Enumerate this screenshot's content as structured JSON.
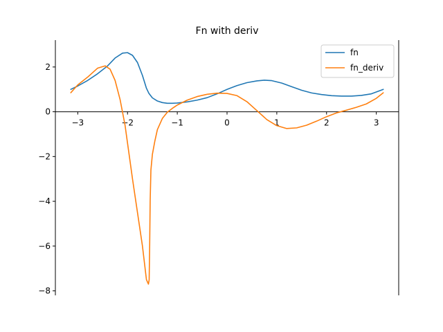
{
  "chart_data": {
    "type": "line",
    "title": "Fn with deriv",
    "xlabel": "",
    "ylabel": "",
    "xlim": [
      -3.45,
      3.45
    ],
    "ylim": [
      -8.2,
      3.2
    ],
    "xticks": [
      -3,
      -2,
      -1,
      0,
      1,
      2,
      3
    ],
    "yticks": [
      -8,
      -6,
      -4,
      -2,
      0,
      2
    ],
    "xtick_labels": [
      "−3",
      "−2",
      "−1",
      "0",
      "1",
      "2",
      "3"
    ],
    "ytick_labels": [
      "−8",
      "−6",
      "−4",
      "−2",
      "0",
      "2"
    ],
    "grid": false,
    "legend": "top-right",
    "series": [
      {
        "name": "fn",
        "color": "#1f77b4",
        "x": [
          -3.14,
          -3.0,
          -2.8,
          -2.6,
          -2.4,
          -2.25,
          -2.1,
          -2.0,
          -1.9,
          -1.8,
          -1.7,
          -1.62,
          -1.57,
          -1.5,
          -1.4,
          -1.3,
          -1.2,
          -1.1,
          -1.0,
          -0.8,
          -0.6,
          -0.4,
          -0.2,
          0.0,
          0.2,
          0.4,
          0.6,
          0.75,
          0.9,
          1.1,
          1.3,
          1.5,
          1.7,
          1.9,
          2.1,
          2.3,
          2.5,
          2.7,
          2.9,
          3.14
        ],
        "y": [
          1.0,
          1.15,
          1.4,
          1.7,
          2.05,
          2.4,
          2.62,
          2.64,
          2.52,
          2.2,
          1.62,
          1.05,
          0.82,
          0.62,
          0.48,
          0.41,
          0.38,
          0.38,
          0.39,
          0.44,
          0.52,
          0.63,
          0.8,
          1.0,
          1.17,
          1.3,
          1.38,
          1.41,
          1.39,
          1.28,
          1.12,
          0.96,
          0.84,
          0.77,
          0.72,
          0.7,
          0.7,
          0.73,
          0.8,
          1.0
        ]
      },
      {
        "name": "fn_deriv",
        "color": "#ff7f0e",
        "x": [
          -3.14,
          -3.0,
          -2.8,
          -2.6,
          -2.45,
          -2.35,
          -2.25,
          -2.15,
          -2.05,
          -2.0,
          -1.95,
          -1.9,
          -1.8,
          -1.7,
          -1.62,
          -1.58,
          -1.565,
          -1.555,
          -1.545,
          -1.53,
          -1.5,
          -1.45,
          -1.4,
          -1.3,
          -1.2,
          -1.1,
          -1.0,
          -0.8,
          -0.6,
          -0.4,
          -0.2,
          0.0,
          0.2,
          0.4,
          0.6,
          0.8,
          1.0,
          1.2,
          1.4,
          1.6,
          1.8,
          2.0,
          2.2,
          2.4,
          2.6,
          2.8,
          3.0,
          3.14
        ],
        "y": [
          0.85,
          1.2,
          1.55,
          1.95,
          2.05,
          1.9,
          1.4,
          0.55,
          -0.6,
          -1.4,
          -2.2,
          -3.0,
          -4.5,
          -6.0,
          -7.5,
          -7.7,
          -7.5,
          -6.0,
          -4.0,
          -2.6,
          -1.9,
          -1.3,
          -0.8,
          -0.3,
          -0.02,
          0.15,
          0.3,
          0.52,
          0.68,
          0.78,
          0.83,
          0.82,
          0.72,
          0.45,
          0.05,
          -0.35,
          -0.62,
          -0.75,
          -0.72,
          -0.6,
          -0.42,
          -0.22,
          -0.05,
          0.07,
          0.2,
          0.35,
          0.6,
          0.85
        ]
      }
    ]
  }
}
